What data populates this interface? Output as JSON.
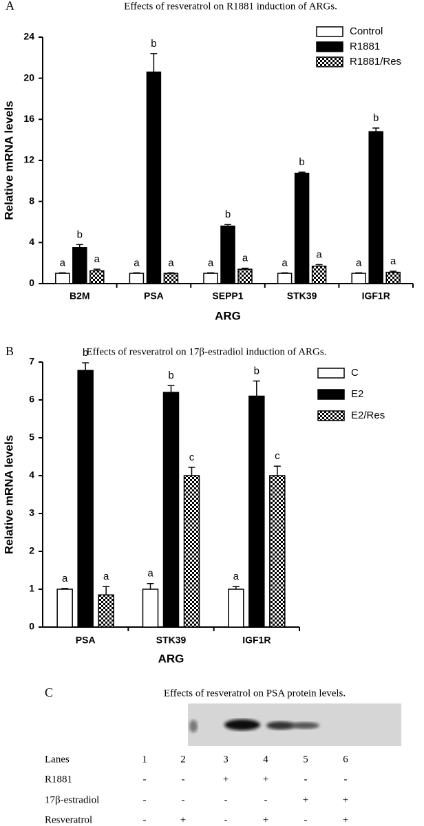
{
  "chart_data": [
    {
      "type": "bar",
      "panel": "A",
      "title": "Effects of resveratrol on R1881 induction of ARGs.",
      "x_label": "ARG",
      "y_label": "Relative mRNA levels",
      "categories": [
        "B2M",
        "PSA",
        "SEPP1",
        "STK39",
        "IGF1R"
      ],
      "series": [
        {
          "name": "Control",
          "color": "#ffffff",
          "pattern": "solid",
          "values": [
            1,
            1,
            1,
            1,
            1
          ],
          "errors": [
            0.05,
            0.05,
            0.05,
            0.05,
            0.05
          ],
          "labels": [
            "a",
            "a",
            "a",
            "a",
            "a"
          ]
        },
        {
          "name": "R1881",
          "color": "#000000",
          "pattern": "solid",
          "values": [
            3.5,
            20.6,
            5.6,
            10.75,
            14.8
          ],
          "errors": [
            0.3,
            1.8,
            0.15,
            0.1,
            0.35
          ],
          "labels": [
            "b",
            "b",
            "b",
            "b",
            "b"
          ]
        },
        {
          "name": "R1881/Res",
          "color": "#000000",
          "pattern": "checkerboard",
          "values": [
            1.25,
            1.0,
            1.4,
            1.7,
            1.1
          ],
          "errors": [
            0.15,
            0.05,
            0.1,
            0.15,
            0.1
          ],
          "labels": [
            "a",
            "a",
            "a",
            "a",
            "a"
          ]
        }
      ],
      "ylim": [
        0,
        24
      ],
      "yticks": [
        0,
        4,
        8,
        12,
        16,
        20,
        24
      ],
      "grid": false,
      "legend": "top-right"
    },
    {
      "type": "bar",
      "panel": "B",
      "title": "Effects of resveratrol on 17β-estradiol induction of ARGs.",
      "x_label": "ARG",
      "y_label": "Relative mRNA levels",
      "categories": [
        "PSA",
        "STK39",
        "IGF1R"
      ],
      "series": [
        {
          "name": "C",
          "color": "#ffffff",
          "pattern": "solid",
          "values": [
            1,
            1,
            1
          ],
          "errors": [
            0.02,
            0.15,
            0.07
          ],
          "labels": [
            "a",
            "a",
            "a"
          ]
        },
        {
          "name": "E2",
          "color": "#000000",
          "pattern": "solid",
          "values": [
            6.78,
            6.2,
            6.1
          ],
          "errors": [
            0.2,
            0.18,
            0.4
          ],
          "labels": [
            "b",
            "b",
            "b"
          ]
        },
        {
          "name": "E2/Res",
          "color": "#000000",
          "pattern": "checkerboard",
          "values": [
            0.85,
            4.0,
            4.0
          ],
          "errors": [
            0.22,
            0.22,
            0.25
          ],
          "labels": [
            "a",
            "c",
            "c"
          ]
        }
      ],
      "ylim": [
        0,
        7
      ],
      "yticks": [
        0,
        1,
        2,
        3,
        4,
        5,
        6,
        7
      ],
      "grid": false,
      "legend": "right"
    }
  ],
  "blot": {
    "panel": "C",
    "title": "Effects of resveratrol on PSA protein levels.",
    "rows": [
      {
        "label": "Lanes",
        "cells": [
          "1",
          "2",
          "3",
          "4",
          "5",
          "6"
        ]
      },
      {
        "label": "R1881",
        "cells": [
          "-",
          "-",
          "+",
          "+",
          "-",
          "-"
        ]
      },
      {
        "label": "17β-estradiol",
        "cells": [
          "-",
          "-",
          "-",
          "-",
          "+",
          "+"
        ]
      },
      {
        "label": "Resveratrol",
        "cells": [
          "-",
          "+",
          "-",
          "+",
          "-",
          "+"
        ]
      }
    ]
  }
}
